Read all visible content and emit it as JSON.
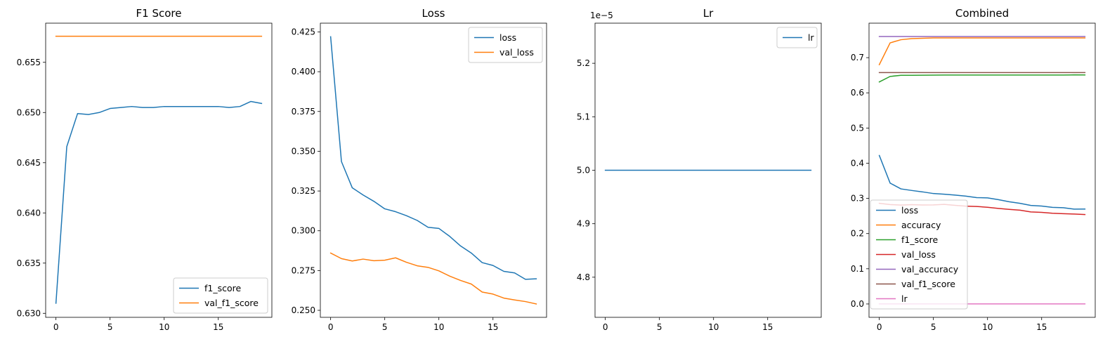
{
  "colors": {
    "blue": "#1f77b4",
    "orange": "#ff7f0e",
    "green": "#2ca02c",
    "red": "#d62728",
    "purple": "#9467bd",
    "brown": "#8c564b",
    "pink": "#e377c2"
  },
  "chart_data": [
    {
      "type": "line",
      "title": "F1 Score",
      "xlim": [
        -0.95,
        19.95
      ],
      "ylim": [
        0.6296,
        0.6589
      ],
      "xticks": [
        0,
        5,
        10,
        15
      ],
      "yticks": [
        0.63,
        0.635,
        0.64,
        0.645,
        0.65,
        0.655
      ],
      "ytick_labels": [
        "0.630",
        "0.635",
        "0.640",
        "0.645",
        "0.650",
        "0.655"
      ],
      "legend_position": "lower-right",
      "x": [
        0,
        1,
        2,
        3,
        4,
        5,
        6,
        7,
        8,
        9,
        10,
        11,
        12,
        13,
        14,
        15,
        16,
        17,
        18,
        19
      ],
      "series": [
        {
          "name": "f1_score",
          "color": "blue",
          "values": [
            0.631,
            0.6466,
            0.6499,
            0.6498,
            0.65,
            0.6504,
            0.6505,
            0.6506,
            0.6505,
            0.6505,
            0.6506,
            0.6506,
            0.6506,
            0.6506,
            0.6506,
            0.6506,
            0.6505,
            0.6506,
            0.6511,
            0.6509
          ]
        },
        {
          "name": "val_f1_score",
          "color": "orange",
          "values": [
            0.6576,
            0.6576,
            0.6576,
            0.6576,
            0.6576,
            0.6576,
            0.6576,
            0.6576,
            0.6576,
            0.6576,
            0.6576,
            0.6576,
            0.6576,
            0.6576,
            0.6576,
            0.6576,
            0.6576,
            0.6576,
            0.6576,
            0.6576
          ]
        }
      ]
    },
    {
      "type": "line",
      "title": "Loss",
      "xlim": [
        -0.95,
        19.95
      ],
      "ylim": [
        0.2456,
        0.4305
      ],
      "xticks": [
        0,
        5,
        10,
        15
      ],
      "yticks": [
        0.25,
        0.275,
        0.3,
        0.325,
        0.35,
        0.375,
        0.4,
        0.425
      ],
      "ytick_labels": [
        "0.250",
        "0.275",
        "0.300",
        "0.325",
        "0.350",
        "0.375",
        "0.400",
        "0.425"
      ],
      "legend_position": "upper-right",
      "x": [
        0,
        1,
        2,
        3,
        4,
        5,
        6,
        7,
        8,
        9,
        10,
        11,
        12,
        13,
        14,
        15,
        16,
        17,
        18,
        19
      ],
      "series": [
        {
          "name": "loss",
          "color": "blue",
          "values": [
            0.422,
            0.3435,
            0.327,
            0.3225,
            0.3185,
            0.3138,
            0.312,
            0.3095,
            0.3065,
            0.3022,
            0.3015,
            0.2965,
            0.2905,
            0.286,
            0.28,
            0.2782,
            0.2745,
            0.2735,
            0.2695,
            0.2698
          ]
        },
        {
          "name": "val_loss",
          "color": "orange",
          "values": [
            0.286,
            0.2825,
            0.281,
            0.2822,
            0.2812,
            0.2815,
            0.283,
            0.2802,
            0.278,
            0.277,
            0.2748,
            0.2715,
            0.2688,
            0.2665,
            0.2615,
            0.2602,
            0.2577,
            0.2565,
            0.2555,
            0.254
          ]
        }
      ]
    },
    {
      "type": "line",
      "title": "Lr",
      "offset_label": "1e−5",
      "xlim": [
        -0.95,
        19.95
      ],
      "ylim": [
        4.725,
        5.275
      ],
      "xticks": [
        0,
        5,
        10,
        15
      ],
      "yticks": [
        4.8,
        4.9,
        5.0,
        5.1,
        5.2
      ],
      "ytick_labels": [
        "4.8",
        "4.9",
        "5.0",
        "5.1",
        "5.2"
      ],
      "legend_position": "upper-right",
      "x": [
        0,
        1,
        2,
        3,
        4,
        5,
        6,
        7,
        8,
        9,
        10,
        11,
        12,
        13,
        14,
        15,
        16,
        17,
        18,
        19
      ],
      "series": [
        {
          "name": "lr",
          "color": "blue",
          "values": [
            5.0,
            5.0,
            5.0,
            5.0,
            5.0,
            5.0,
            5.0,
            5.0,
            5.0,
            5.0,
            5.0,
            5.0,
            5.0,
            5.0,
            5.0,
            5.0,
            5.0,
            5.0,
            5.0,
            5.0
          ]
        }
      ]
    },
    {
      "type": "line",
      "title": "Combined",
      "xlim": [
        -0.95,
        19.95
      ],
      "ylim": [
        -0.038,
        0.798
      ],
      "xticks": [
        0,
        5,
        10,
        15
      ],
      "yticks": [
        0.0,
        0.1,
        0.2,
        0.3,
        0.4,
        0.5,
        0.6,
        0.7
      ],
      "ytick_labels": [
        "0.0",
        "0.1",
        "0.2",
        "0.3",
        "0.4",
        "0.5",
        "0.6",
        "0.7"
      ],
      "legend_position": "lower-left",
      "x": [
        0,
        1,
        2,
        3,
        4,
        5,
        6,
        7,
        8,
        9,
        10,
        11,
        12,
        13,
        14,
        15,
        16,
        17,
        18,
        19
      ],
      "series": [
        {
          "name": "loss",
          "color": "blue",
          "values": [
            0.422,
            0.3435,
            0.327,
            0.3225,
            0.3185,
            0.3138,
            0.312,
            0.3095,
            0.3065,
            0.3022,
            0.3015,
            0.2965,
            0.2905,
            0.286,
            0.28,
            0.2782,
            0.2745,
            0.2735,
            0.2695,
            0.2698
          ]
        },
        {
          "name": "accuracy",
          "color": "orange",
          "values": [
            0.68,
            0.742,
            0.751,
            0.754,
            0.755,
            0.756,
            0.756,
            0.756,
            0.756,
            0.756,
            0.756,
            0.756,
            0.756,
            0.756,
            0.756,
            0.756,
            0.756,
            0.756,
            0.756,
            0.756
          ]
        },
        {
          "name": "f1_score",
          "color": "green",
          "values": [
            0.631,
            0.6466,
            0.6499,
            0.6498,
            0.65,
            0.6504,
            0.6505,
            0.6506,
            0.6505,
            0.6505,
            0.6506,
            0.6506,
            0.6506,
            0.6506,
            0.6506,
            0.6506,
            0.6505,
            0.6506,
            0.6511,
            0.6509
          ]
        },
        {
          "name": "val_loss",
          "color": "red",
          "values": [
            0.286,
            0.2825,
            0.281,
            0.2822,
            0.2812,
            0.2815,
            0.283,
            0.2802,
            0.278,
            0.277,
            0.2748,
            0.2715,
            0.2688,
            0.2665,
            0.2615,
            0.2602,
            0.2577,
            0.2565,
            0.2555,
            0.254
          ]
        },
        {
          "name": "val_accuracy",
          "color": "purple",
          "values": [
            0.76,
            0.76,
            0.76,
            0.76,
            0.76,
            0.76,
            0.76,
            0.76,
            0.76,
            0.76,
            0.76,
            0.76,
            0.76,
            0.76,
            0.76,
            0.76,
            0.76,
            0.76,
            0.76,
            0.76
          ]
        },
        {
          "name": "val_f1_score",
          "color": "brown",
          "values": [
            0.6576,
            0.6576,
            0.6576,
            0.6576,
            0.6576,
            0.6576,
            0.6576,
            0.6576,
            0.6576,
            0.6576,
            0.6576,
            0.6576,
            0.6576,
            0.6576,
            0.6576,
            0.6576,
            0.6576,
            0.6576,
            0.6576,
            0.6576
          ]
        },
        {
          "name": "lr",
          "color": "pink",
          "values": [
            5e-05,
            5e-05,
            5e-05,
            5e-05,
            5e-05,
            5e-05,
            5e-05,
            5e-05,
            5e-05,
            5e-05,
            5e-05,
            5e-05,
            5e-05,
            5e-05,
            5e-05,
            5e-05,
            5e-05,
            5e-05,
            5e-05,
            5e-05
          ]
        }
      ]
    }
  ]
}
